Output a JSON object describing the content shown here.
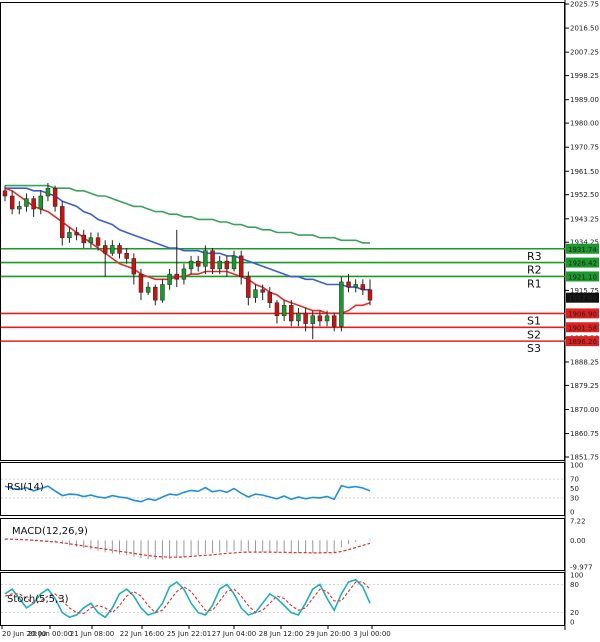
{
  "chart_data": [
    {
      "type": "candlestick",
      "ylim": [
        1851.75,
        2025.75
      ],
      "y_ticks": [
        "2025.75",
        "2016.50",
        "2007.25",
        "1998.25",
        "1989.00",
        "1980.00",
        "1970.75",
        "1961.50",
        "1952.50",
        "1943.25",
        "1934.25",
        "1915.75",
        "1897.50",
        "1888.25",
        "1879.25",
        "1870.00",
        "1860.75",
        "1851.75"
      ],
      "x_ticks": [
        "20 Jun 20:00",
        "20 Jun 00:00",
        "21 Jun 08:00",
        "22 Jun 16:00",
        "25 Jun 22:01",
        "27 Jun 04:00",
        "28 Jun 12:00",
        "29 Jun 20:00",
        "3 Jul 00:00"
      ],
      "current_price": 1912.94,
      "levels": [
        {
          "name": "R3",
          "value": 1931.74,
          "label": "1931.74",
          "color": "#1a9a2a"
        },
        {
          "name": "R2",
          "value": 1926.42,
          "label": "1926.42",
          "color": "#1a9a2a"
        },
        {
          "name": "R1",
          "value": 1921.1,
          "label": "1921.10",
          "color": "#1a9a2a"
        },
        {
          "name": "S1",
          "value": 1906.9,
          "label": "1906.90",
          "color": "#e02020"
        },
        {
          "name": "S2",
          "value": 1901.58,
          "label": "1901.58",
          "color": "#e02020"
        },
        {
          "name": "S3",
          "value": 1896.26,
          "label": "1896.26",
          "color": "#e02020"
        }
      ],
      "candles": [
        [
          1954,
          1952,
          1956,
          1950
        ],
        [
          1952,
          1947,
          1954,
          1945
        ],
        [
          1947,
          1948,
          1950,
          1945
        ],
        [
          1948,
          1951,
          1953,
          1946
        ],
        [
          1951,
          1947,
          1952,
          1944
        ],
        [
          1947,
          1952,
          1954,
          1945
        ],
        [
          1952,
          1955,
          1957,
          1950
        ],
        [
          1955,
          1948,
          1956,
          1946
        ],
        [
          1948,
          1936,
          1950,
          1933
        ],
        [
          1936,
          1938,
          1940,
          1934
        ],
        [
          1938,
          1937,
          1940,
          1935
        ],
        [
          1937,
          1934,
          1939,
          1932
        ],
        [
          1934,
          1936,
          1938,
          1932
        ],
        [
          1936,
          1933,
          1938,
          1931
        ],
        [
          1933,
          1930,
          1935,
          1921
        ],
        [
          1930,
          1933,
          1935,
          1929
        ],
        [
          1933,
          1930,
          1934,
          1928
        ],
        [
          1930,
          1928,
          1932,
          1926
        ],
        [
          1928,
          1922,
          1930,
          1918
        ],
        [
          1922,
          1915,
          1924,
          1912
        ],
        [
          1915,
          1917,
          1919,
          1914
        ],
        [
          1917,
          1912,
          1918,
          1910
        ],
        [
          1912,
          1918,
          1920,
          1911
        ],
        [
          1918,
          1922,
          1924,
          1916
        ],
        [
          1922,
          1920,
          1939,
          1917
        ],
        [
          1920,
          1924,
          1926,
          1918
        ],
        [
          1924,
          1927,
          1929,
          1922
        ],
        [
          1927,
          1925,
          1929,
          1923
        ],
        [
          1925,
          1931,
          1933,
          1922
        ],
        [
          1931,
          1924,
          1932,
          1922
        ],
        [
          1924,
          1927,
          1929,
          1922
        ],
        [
          1927,
          1924,
          1929,
          1921
        ],
        [
          1924,
          1929,
          1931,
          1923
        ],
        [
          1929,
          1921,
          1931,
          1918
        ],
        [
          1921,
          1913,
          1923,
          1910
        ],
        [
          1913,
          1916,
          1918,
          1911
        ],
        [
          1916,
          1915,
          1918,
          1912
        ],
        [
          1915,
          1911,
          1917,
          1909
        ],
        [
          1911,
          1906,
          1912,
          1903
        ],
        [
          1906,
          1910,
          1912,
          1904
        ],
        [
          1910,
          1904,
          1912,
          1902
        ],
        [
          1904,
          1907,
          1909,
          1902
        ],
        [
          1907,
          1903,
          1909,
          1900
        ],
        [
          1903,
          1906,
          1908,
          1897
        ],
        [
          1906,
          1904,
          1908,
          1902
        ],
        [
          1904,
          1906,
          1908,
          1902
        ],
        [
          1906,
          1902,
          1907,
          1900
        ],
        [
          1902,
          1919,
          1921,
          1900
        ],
        [
          1919,
          1917,
          1922,
          1915
        ],
        [
          1917,
          1918,
          1920,
          1915
        ],
        [
          1918,
          1916,
          1920,
          1914
        ],
        [
          1916,
          1912,
          1920,
          1910
        ]
      ],
      "ma_fast": [
        1955,
        1954,
        1952,
        1950,
        1948,
        1947,
        1946,
        1944,
        1942,
        1940,
        1938,
        1936,
        1934,
        1932,
        1930,
        1928,
        1926,
        1925,
        1924,
        1922,
        1921,
        1920,
        1920,
        1920,
        1921,
        1921,
        1922,
        1922,
        1923,
        1923,
        1923,
        1923,
        1922,
        1921,
        1920,
        1918,
        1917,
        1915,
        1914,
        1912,
        1911,
        1910,
        1909,
        1908,
        1908,
        1907,
        1907,
        1907,
        1908,
        1910,
        1910,
        1911
      ],
      "ma_mid": [
        1955,
        1955,
        1955,
        1955,
        1954,
        1954,
        1953,
        1952,
        1950,
        1949,
        1948,
        1946,
        1945,
        1943,
        1942,
        1941,
        1939,
        1938,
        1937,
        1936,
        1935,
        1934,
        1933,
        1932,
        1932,
        1931,
        1931,
        1931,
        1930,
        1930,
        1930,
        1929,
        1929,
        1928,
        1927,
        1926,
        1925,
        1924,
        1923,
        1922,
        1921,
        1921,
        1920,
        1920,
        1919,
        1918,
        1918,
        1918,
        1917,
        1917,
        1916,
        1916
      ],
      "ma_slow": [
        1956,
        1956,
        1956,
        1956,
        1956,
        1956,
        1956,
        1955,
        1955,
        1955,
        1954,
        1954,
        1953,
        1952,
        1952,
        1951,
        1950,
        1949,
        1948,
        1948,
        1947,
        1946,
        1946,
        1945,
        1945,
        1944,
        1944,
        1943,
        1943,
        1943,
        1942,
        1942,
        1941,
        1941,
        1940,
        1940,
        1939,
        1939,
        1938,
        1938,
        1938,
        1937,
        1937,
        1937,
        1936,
        1936,
        1936,
        1935,
        1935,
        1935,
        1934,
        1934
      ]
    },
    {
      "type": "line",
      "title": "RSI(14)",
      "ylim": [
        0,
        100
      ],
      "y_ticks": [
        "100",
        "70",
        "50",
        "30",
        "0"
      ],
      "values": [
        55,
        50,
        48,
        52,
        45,
        50,
        55,
        45,
        35,
        38,
        37,
        33,
        36,
        32,
        30,
        35,
        32,
        30,
        25,
        22,
        28,
        25,
        32,
        38,
        36,
        42,
        46,
        44,
        52,
        43,
        46,
        42,
        50,
        40,
        32,
        38,
        36,
        32,
        28,
        34,
        27,
        32,
        28,
        31,
        30,
        33,
        27,
        56,
        52,
        54,
        51,
        45
      ]
    },
    {
      "type": "bar",
      "title": "MACD(12,26,9)",
      "ylim": [
        -9.977,
        7.22
      ],
      "y_ticks": [
        "7.22",
        "0.00",
        "-9.977"
      ],
      "histogram": [
        0.4,
        0.3,
        0.1,
        -0.1,
        -0.3,
        -0.5,
        -0.6,
        -0.8,
        -1.4,
        -1.9,
        -2.4,
        -2.9,
        -3.4,
        -3.9,
        -4.5,
        -4.9,
        -5.2,
        -5.6,
        -6.1,
        -6.6,
        -6.9,
        -7.2,
        -7.2,
        -6.9,
        -6.6,
        -6.2,
        -5.8,
        -5.5,
        -5.0,
        -4.8,
        -4.5,
        -4.3,
        -4.0,
        -4.0,
        -4.2,
        -4.3,
        -4.3,
        -4.4,
        -4.6,
        -4.6,
        -4.7,
        -4.7,
        -4.8,
        -4.8,
        -4.7,
        -4.5,
        -4.5,
        -2.6,
        -1.4,
        -0.6,
        0.0,
        0.3
      ],
      "signal": [
        0.5,
        0.4,
        0.3,
        0.2,
        0.0,
        -0.2,
        -0.4,
        -0.6,
        -0.9,
        -1.3,
        -1.7,
        -2.1,
        -2.5,
        -2.9,
        -3.3,
        -3.7,
        -4.1,
        -4.5,
        -4.9,
        -5.3,
        -5.7,
        -6.0,
        -6.2,
        -6.3,
        -6.3,
        -6.2,
        -6.0,
        -5.8,
        -5.6,
        -5.4,
        -5.1,
        -4.9,
        -4.7,
        -4.5,
        -4.4,
        -4.4,
        -4.4,
        -4.4,
        -4.5,
        -4.5,
        -4.6,
        -4.6,
        -4.6,
        -4.7,
        -4.7,
        -4.6,
        -4.6,
        -4.2,
        -3.5,
        -2.7,
        -1.9,
        -1.1
      ]
    },
    {
      "type": "line",
      "title": "Stoch(5,5,3)",
      "ylim": [
        0,
        100
      ],
      "y_ticks": [
        "100",
        "80",
        "20",
        "0"
      ],
      "k": [
        60,
        70,
        50,
        30,
        40,
        60,
        70,
        50,
        20,
        10,
        15,
        30,
        40,
        20,
        10,
        30,
        60,
        70,
        55,
        30,
        15,
        20,
        40,
        75,
        85,
        70,
        40,
        20,
        15,
        35,
        70,
        80,
        60,
        30,
        15,
        20,
        40,
        60,
        50,
        35,
        20,
        15,
        40,
        70,
        80,
        50,
        25,
        60,
        85,
        90,
        75,
        40
      ],
      "d": [
        55,
        60,
        60,
        50,
        40,
        45,
        55,
        60,
        45,
        30,
        20,
        18,
        30,
        35,
        30,
        20,
        35,
        55,
        65,
        55,
        35,
        20,
        25,
        45,
        65,
        75,
        65,
        45,
        25,
        25,
        45,
        65,
        70,
        55,
        35,
        20,
        25,
        40,
        55,
        50,
        35,
        25,
        30,
        50,
        70,
        65,
        45,
        45,
        65,
        85,
        85,
        70
      ]
    }
  ]
}
